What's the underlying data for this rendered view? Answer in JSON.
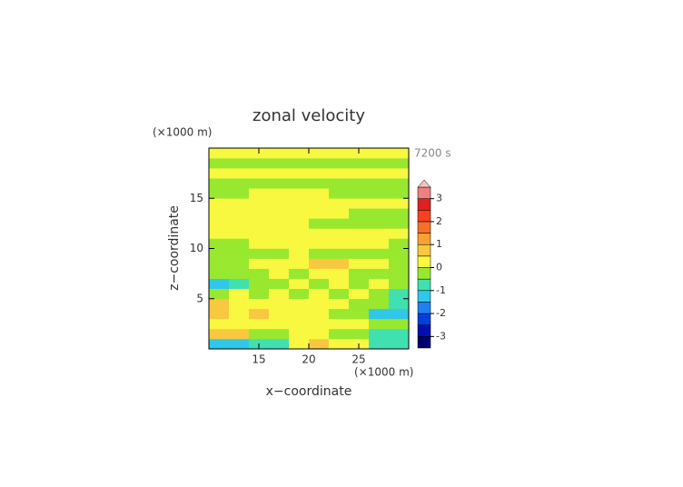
{
  "chart_data": {
    "type": "contour",
    "title": "zonal velocity",
    "y_unit": "(×1000 m)",
    "x_unit": "(×1000 m)",
    "time_label": "7200 s",
    "xlabel": "x−coordinate",
    "ylabel": "z−coordinate",
    "xlim": [
      10,
      30
    ],
    "ylim": [
      0,
      20
    ],
    "xticks": [
      15,
      20,
      25
    ],
    "yticks": [
      5,
      10,
      15
    ],
    "x": [
      11,
      13,
      15,
      17,
      19,
      21,
      23,
      25,
      27,
      29
    ],
    "y": [
      0.5,
      1.5,
      2.5,
      3.5,
      4.5,
      5.5,
      6.5,
      7.5,
      8.5,
      9.5,
      10.5,
      11.5,
      12.5,
      13.5,
      14.5,
      15.5,
      16.5,
      17.5,
      18.5,
      19.5
    ],
    "z": [
      [
        -1.2,
        -1.2,
        -0.6,
        -0.6,
        0.2,
        0.7,
        0.2,
        0.2,
        -0.6,
        -0.6
      ],
      [
        0.7,
        0.7,
        -0.2,
        -0.2,
        0.2,
        0.2,
        -0.2,
        -0.2,
        -0.6,
        -0.6
      ],
      [
        0.2,
        0.2,
        0.2,
        0.2,
        0.2,
        0.2,
        0.2,
        0.2,
        -0.2,
        -0.2
      ],
      [
        0.7,
        0.2,
        0.7,
        0.2,
        0.2,
        0.2,
        -0.2,
        -0.2,
        -1.2,
        -1.2
      ],
      [
        0.7,
        0.2,
        0.2,
        0.2,
        0.2,
        0.2,
        0.2,
        -0.2,
        -0.2,
        -0.6
      ],
      [
        -0.2,
        0.2,
        -0.2,
        0.2,
        -0.2,
        0.2,
        -0.2,
        0.2,
        -0.2,
        -0.6
      ],
      [
        -1.2,
        -0.6,
        -0.2,
        -0.2,
        0.2,
        -0.2,
        0.2,
        -0.2,
        0.2,
        -0.2
      ],
      [
        -0.2,
        -0.2,
        -0.2,
        0.2,
        -0.2,
        0.2,
        0.2,
        -0.2,
        -0.2,
        -0.2
      ],
      [
        -0.2,
        -0.2,
        0.2,
        0.2,
        0.2,
        0.7,
        0.7,
        0.2,
        0.2,
        -0.2
      ],
      [
        -0.2,
        -0.2,
        -0.2,
        -0.2,
        0.2,
        -0.2,
        -0.2,
        -0.2,
        -0.2,
        -0.2
      ],
      [
        -0.2,
        -0.2,
        0.2,
        0.2,
        0.2,
        0.2,
        0.2,
        0.2,
        0.2,
        -0.2
      ],
      [
        0.2,
        0.2,
        0.2,
        0.2,
        0.2,
        0.2,
        0.2,
        0.2,
        0.2,
        0.2
      ],
      [
        0.2,
        0.2,
        0.2,
        0.2,
        0.2,
        -0.2,
        -0.2,
        -0.2,
        -0.2,
        -0.2
      ],
      [
        0.2,
        0.2,
        0.2,
        0.2,
        0.2,
        0.2,
        0.2,
        -0.2,
        -0.2,
        -0.2
      ],
      [
        0.2,
        0.2,
        0.2,
        0.2,
        0.2,
        0.2,
        0.2,
        0.2,
        0.2,
        0.2
      ],
      [
        -0.2,
        -0.2,
        0.2,
        0.2,
        0.2,
        0.2,
        -0.2,
        -0.2,
        -0.2,
        -0.2
      ],
      [
        -0.2,
        -0.2,
        -0.2,
        -0.2,
        -0.2,
        -0.2,
        -0.2,
        -0.2,
        -0.2,
        -0.2
      ],
      [
        0.2,
        0.2,
        0.2,
        0.2,
        0.2,
        0.2,
        0.2,
        0.2,
        0.2,
        0.2
      ],
      [
        -0.2,
        -0.2,
        -0.2,
        -0.2,
        -0.2,
        -0.2,
        -0.2,
        -0.2,
        -0.2,
        -0.2
      ],
      [
        0.2,
        0.2,
        0.2,
        0.2,
        0.2,
        0.2,
        0.2,
        0.2,
        0.2,
        0.2
      ]
    ],
    "levels": [
      -3.5,
      -3,
      -2.5,
      -2,
      -1.5,
      -1,
      -0.5,
      0,
      0.5,
      1,
      1.5,
      2,
      2.5,
      3,
      3.5
    ],
    "colors": [
      "#000070",
      "#0010b0",
      "#0040e0",
      "#2080f0",
      "#30c8e8",
      "#40e0b0",
      "#98e830",
      "#f8f840",
      "#f8c840",
      "#f8a030",
      "#f87028",
      "#f84020",
      "#e02020",
      "#f08080"
    ],
    "over_color": "#f8c0c0",
    "colorbar_ticks": [
      -3,
      -2,
      -1,
      0,
      1,
      2,
      3
    ]
  }
}
